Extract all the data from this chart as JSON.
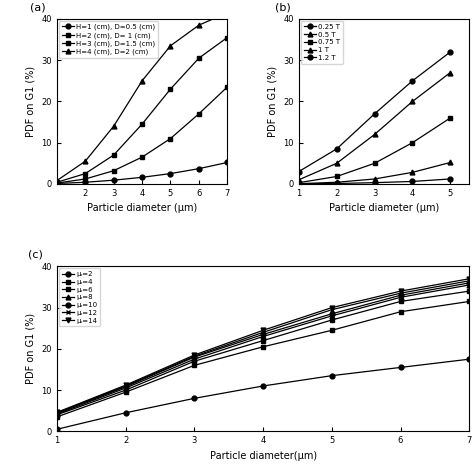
{
  "panel_a": {
    "label": "(a)",
    "xlabel": "Particle diameter (μm)",
    "ylabel": "PDF on G1 (%)",
    "xlim": [
      1,
      7
    ],
    "ylim": [
      0,
      40
    ],
    "xticks": [
      2,
      3,
      4,
      5,
      6,
      7
    ],
    "yticks": [
      0,
      10,
      20,
      30,
      40
    ],
    "x": [
      1,
      2,
      3,
      4,
      5,
      6,
      7
    ],
    "series": [
      {
        "label": "H=1 (cm), D=0.5 (cm)",
        "y": [
          0.1,
          0.4,
          0.9,
          1.6,
          2.5,
          3.7,
          5.2
        ],
        "marker": "o",
        "linestyle": "-"
      },
      {
        "label": "H=2 (cm), D= 1 (cm)",
        "y": [
          0.2,
          1.2,
          3.2,
          6.5,
          11.0,
          17.0,
          23.5
        ],
        "marker": "s",
        "linestyle": "-"
      },
      {
        "label": "H=3 (cm), D=1.5 (cm)",
        "y": [
          0.4,
          2.5,
          7.0,
          14.5,
          23.0,
          30.5,
          35.5
        ],
        "marker": "s",
        "linestyle": "-"
      },
      {
        "label": "H=4 (cm), D=2 (cm)",
        "y": [
          0.8,
          5.5,
          14.0,
          25.0,
          33.5,
          38.5,
          41.5
        ],
        "marker": "^",
        "linestyle": "-"
      }
    ]
  },
  "panel_b": {
    "label": "(b)",
    "xlabel": "Particle diameter (μm)",
    "ylabel": "PDF on G1 (%)",
    "xlim": [
      1,
      5.5
    ],
    "ylim": [
      0,
      40
    ],
    "xticks": [
      1,
      2,
      3,
      4,
      5
    ],
    "yticks": [
      0,
      10,
      20,
      30,
      40
    ],
    "x": [
      1,
      2,
      3,
      4,
      5
    ],
    "series": [
      {
        "label": "0.25 T",
        "y": [
          0.02,
          0.1,
          0.3,
          0.6,
          1.2
        ],
        "marker": "o",
        "linestyle": "-"
      },
      {
        "label": "0.5 T",
        "y": [
          0.05,
          0.4,
          1.2,
          2.8,
          5.2
        ],
        "marker": "^",
        "linestyle": "-"
      },
      {
        "label": "0.75 T",
        "y": [
          0.3,
          1.8,
          5.0,
          10.0,
          16.0
        ],
        "marker": "s",
        "linestyle": "-"
      },
      {
        "label": "1 T",
        "y": [
          1.0,
          5.0,
          12.0,
          20.0,
          27.0
        ],
        "marker": "^",
        "linestyle": "-"
      },
      {
        "label": "1.2 T",
        "y": [
          3.0,
          8.5,
          17.0,
          25.0,
          32.0
        ],
        "marker": "o",
        "linestyle": "-"
      }
    ]
  },
  "panel_c": {
    "label": "(c)",
    "xlabel": "Particle diameter(μm)",
    "ylabel": "PDF on G1 (%)",
    "xlim": [
      1,
      7
    ],
    "ylim": [
      0,
      40
    ],
    "xticks": [
      1,
      2,
      3,
      4,
      5,
      6,
      7
    ],
    "yticks": [
      0,
      10,
      20,
      30,
      40
    ],
    "x": [
      1,
      2,
      3,
      4,
      5,
      6,
      7
    ],
    "series": [
      {
        "label": "μᵣ=2",
        "y": [
          0.5,
          4.5,
          8.0,
          11.0,
          13.5,
          15.5,
          17.5
        ],
        "marker": "o",
        "linestyle": "-"
      },
      {
        "label": "μᵣ=4",
        "y": [
          3.5,
          9.5,
          16.0,
          20.5,
          24.5,
          29.0,
          31.5
        ],
        "marker": "s",
        "linestyle": "-"
      },
      {
        "label": "μᵣ=6",
        "y": [
          4.0,
          10.0,
          17.0,
          22.0,
          27.0,
          31.5,
          34.0
        ],
        "marker": "s",
        "linestyle": "-"
      },
      {
        "label": "μᵣ=8",
        "y": [
          4.2,
          10.5,
          17.5,
          23.0,
          28.0,
          32.5,
          35.5
        ],
        "marker": "^",
        "linestyle": "-"
      },
      {
        "label": "μᵣ=10",
        "y": [
          4.4,
          10.8,
          18.0,
          23.5,
          28.5,
          33.0,
          36.0
        ],
        "marker": "o",
        "linestyle": "-"
      },
      {
        "label": "μᵣ=12",
        "y": [
          4.5,
          11.0,
          18.2,
          24.0,
          29.5,
          33.5,
          36.5
        ],
        "marker": "x",
        "linestyle": "-"
      },
      {
        "label": "μᵣ=14",
        "y": [
          4.6,
          11.2,
          18.5,
          24.5,
          30.0,
          34.0,
          37.0
        ],
        "marker": "v",
        "linestyle": "-"
      }
    ]
  },
  "color": "#000000",
  "linewidth": 0.9,
  "markersize": 3.5,
  "fontsize_label": 7,
  "fontsize_tick": 6,
  "fontsize_legend": 5.0,
  "fontsize_panel": 8
}
